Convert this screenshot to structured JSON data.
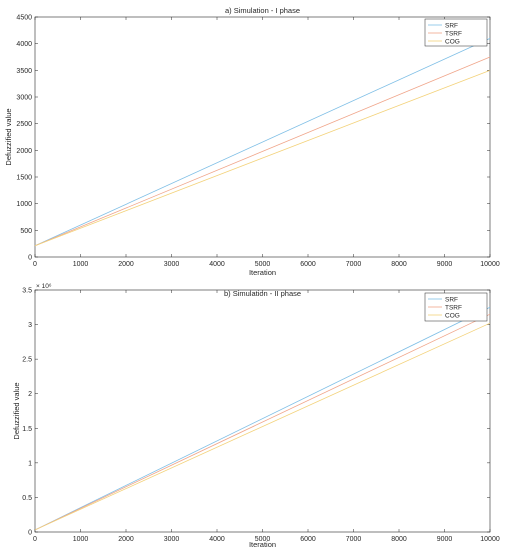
{
  "chart_data": [
    {
      "type": "line",
      "title": "a) Simulation - I phase",
      "xlabel": "Iteration",
      "ylabel": "Defuzzified value",
      "xlim": [
        0,
        10000
      ],
      "ylim": [
        0,
        4500
      ],
      "xticks": [
        0,
        1000,
        2000,
        3000,
        4000,
        5000,
        6000,
        7000,
        8000,
        9000,
        10000
      ],
      "yticks": [
        0,
        500,
        1000,
        1500,
        2000,
        2500,
        3000,
        3500,
        4000,
        4500
      ],
      "exponent_label": "",
      "legend_position": "top-right",
      "series": [
        {
          "name": "SRF",
          "color": "#7fbfe6",
          "x": [
            0,
            10000
          ],
          "y": [
            210,
            4100
          ]
        },
        {
          "name": "TSRF",
          "color": "#f0a58a",
          "x": [
            0,
            10000
          ],
          "y": [
            210,
            3750
          ]
        },
        {
          "name": "COG",
          "color": "#f3d27a",
          "x": [
            0,
            10000
          ],
          "y": [
            210,
            3500
          ]
        }
      ]
    },
    {
      "type": "line",
      "title": "b) Simulation - II phase",
      "xlabel": "Iteration",
      "ylabel": "Defuzzified value",
      "xlim": [
        0,
        10000
      ],
      "ylim": [
        0,
        3.5
      ],
      "xticks": [
        0,
        1000,
        2000,
        3000,
        4000,
        5000,
        6000,
        7000,
        8000,
        9000,
        10000
      ],
      "yticks": [
        0,
        0.5,
        1,
        1.5,
        2,
        2.5,
        3,
        3.5
      ],
      "exponent_label": "× 10⁶",
      "legend_position": "top-right",
      "series": [
        {
          "name": "SRF",
          "color": "#7fbfe6",
          "x": [
            0,
            10000
          ],
          "y": [
            0.03,
            3.25
          ]
        },
        {
          "name": "TSRF",
          "color": "#f0a58a",
          "x": [
            0,
            10000
          ],
          "y": [
            0.03,
            3.15
          ]
        },
        {
          "name": "COG",
          "color": "#f3d27a",
          "x": [
            0,
            10000
          ],
          "y": [
            0.03,
            3.02
          ]
        }
      ]
    }
  ]
}
